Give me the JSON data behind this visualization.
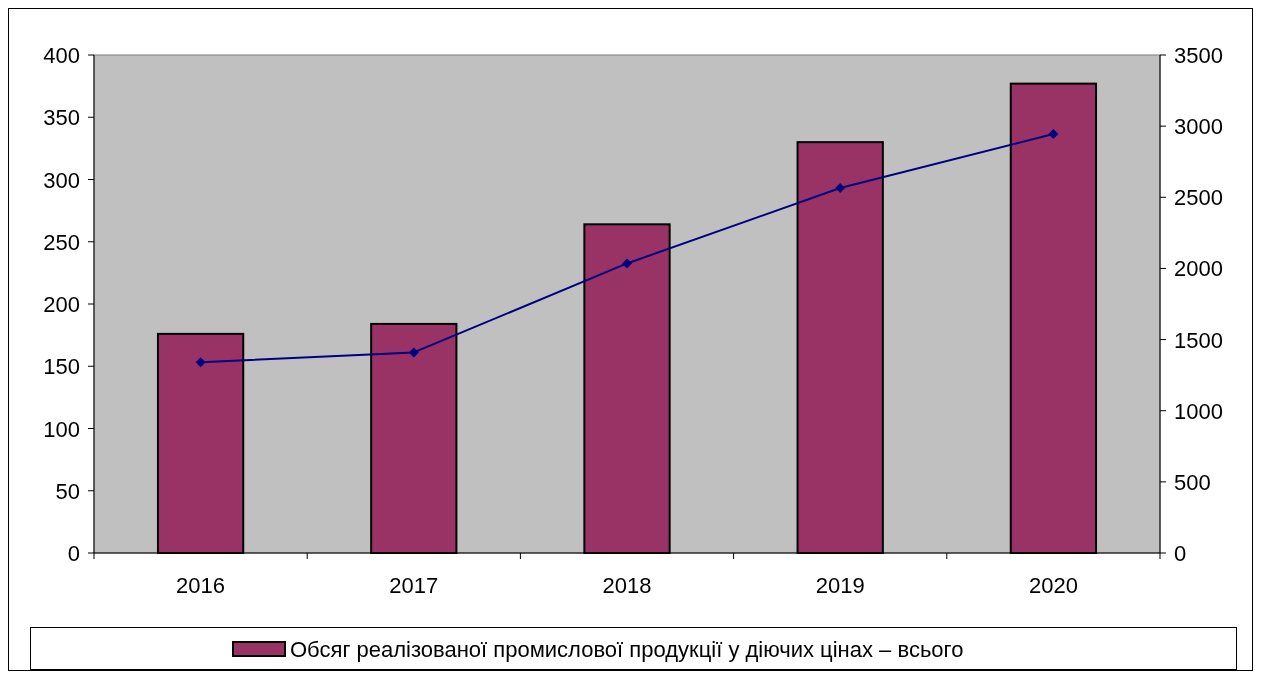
{
  "chart_data": {
    "type": "bar",
    "categories": [
      "2016",
      "2017",
      "2018",
      "2019",
      "2020"
    ],
    "series": [
      {
        "name": "Обсяг реалізованої промислової продукції у діючих цінах – всього",
        "color": "#993366",
        "values": [
          176,
          184,
          264,
          330,
          377
        ]
      },
      {
        "type": "line",
        "axis": "y2",
        "color": "#000080",
        "marker": "diamond",
        "values": [
          1340,
          1410,
          2035,
          2565,
          2945
        ]
      }
    ],
    "ylim": [
      0,
      400
    ],
    "yticks": [
      0,
      50,
      100,
      150,
      200,
      250,
      300,
      350,
      400
    ],
    "y2lim": [
      0,
      3500
    ],
    "y2ticks": [
      0,
      500,
      1000,
      1500,
      2000,
      2500,
      3000,
      3500
    ],
    "grid": false,
    "legend": "bottom"
  }
}
